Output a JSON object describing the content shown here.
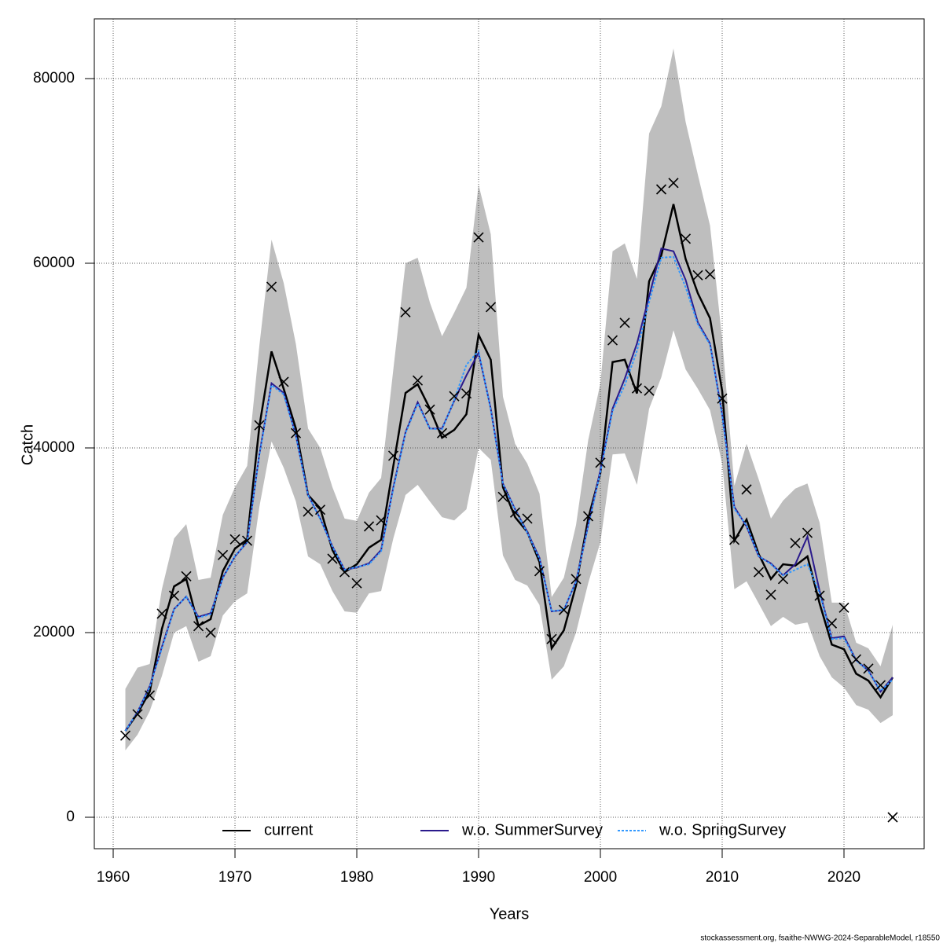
{
  "chart_data": {
    "type": "line",
    "x_label": "Years",
    "y_label": "Catch",
    "footer": "stockassessment.org, fsaithe-NWWG-2024-SeparableModel, r18550",
    "x": [
      1961,
      1962,
      1963,
      1964,
      1965,
      1966,
      1967,
      1968,
      1969,
      1970,
      1971,
      1972,
      1973,
      1974,
      1975,
      1976,
      1977,
      1978,
      1979,
      1980,
      1981,
      1982,
      1983,
      1984,
      1985,
      1986,
      1987,
      1988,
      1989,
      1990,
      1991,
      1992,
      1993,
      1994,
      1995,
      1996,
      1997,
      1998,
      1999,
      2000,
      2001,
      2002,
      2003,
      2004,
      2005,
      2006,
      2007,
      2008,
      2009,
      2010,
      2011,
      2012,
      2013,
      2014,
      2015,
      2016,
      2017,
      2018,
      2019,
      2020,
      2021,
      2022,
      2023,
      2024
    ],
    "series": [
      {
        "name": "current",
        "color": "#000000",
        "line_style": "solid",
        "values": [
          9350,
          11250,
          13600,
          20400,
          25000,
          25800,
          20750,
          21450,
          26650,
          29100,
          30100,
          42300,
          50450,
          46400,
          42100,
          34900,
          33450,
          28950,
          26550,
          27400,
          29200,
          30050,
          38050,
          45950,
          46900,
          44250,
          41100,
          41950,
          43650,
          52250,
          49550,
          35750,
          32500,
          30900,
          27650,
          18300,
          20250,
          25100,
          32350,
          37300,
          49300,
          49550,
          45900,
          58050,
          60850,
          66400,
          60450,
          56750,
          54050,
          46150,
          29950,
          32250,
          28500,
          25800,
          27400,
          27250,
          28250,
          23150,
          18700,
          18200,
          15550,
          14800,
          13000,
          15150
        ]
      },
      {
        "name": "w.o. SummerSurvey",
        "color": "#2a1a8c",
        "line_style": "solid",
        "values": [
          9350,
          11400,
          14200,
          18450,
          22550,
          23900,
          21700,
          22100,
          25950,
          28250,
          29800,
          39300,
          47000,
          45950,
          41350,
          34900,
          32350,
          29350,
          26800,
          27050,
          27500,
          28950,
          35750,
          41700,
          44950,
          42100,
          42100,
          45100,
          47850,
          50300,
          44250,
          36150,
          33350,
          30900,
          28100,
          22300,
          22450,
          25550,
          31650,
          37600,
          44250,
          47500,
          51300,
          56400,
          61600,
          61300,
          58200,
          53600,
          51300,
          43650,
          33600,
          31500,
          28250,
          27500,
          26200,
          27400,
          30400,
          24500,
          19400,
          19600,
          17000,
          15900,
          13600,
          15150
        ]
      },
      {
        "name": "w.o. SpringSurvey",
        "color": "#3399ff",
        "line_style": "dotted",
        "values": [
          9350,
          11400,
          14100,
          18300,
          22500,
          23900,
          21600,
          22000,
          25900,
          28300,
          29800,
          39200,
          46800,
          45800,
          41300,
          34900,
          32300,
          29300,
          26800,
          27100,
          27400,
          28800,
          35600,
          41600,
          44800,
          42100,
          42000,
          45200,
          49000,
          50500,
          44100,
          36100,
          33300,
          30800,
          28000,
          22300,
          22500,
          25500,
          31500,
          37400,
          44000,
          46800,
          50500,
          55800,
          60600,
          60700,
          57400,
          53400,
          51200,
          43500,
          33400,
          31600,
          28300,
          27400,
          26200,
          26800,
          27400,
          24300,
          19300,
          19400,
          17000,
          15800,
          13700,
          14900
        ]
      }
    ],
    "confidence_band": {
      "color": "#bebebe",
      "upper": [
        13900,
        16200,
        16600,
        24700,
        30200,
        31750,
        25700,
        25950,
        32750,
        35750,
        38050,
        51050,
        62550,
        57850,
        51250,
        42100,
        40000,
        35750,
        32350,
        32100,
        35150,
        36750,
        48500,
        60000,
        60600,
        55750,
        52100,
        54650,
        57350,
        68500,
        63150,
        45550,
        40450,
        38300,
        35050,
        23850,
        25950,
        31650,
        40850,
        47000,
        61300,
        62150,
        58300,
        74050,
        77000,
        83250,
        75300,
        69600,
        64100,
        51750,
        35900,
        40450,
        36600,
        32350,
        34300,
        35600,
        36150,
        31900,
        23250,
        23250,
        18900,
        18300,
        16350,
        20850
      ],
      "lower": [
        7250,
        8950,
        11500,
        15300,
        20000,
        20700,
        16850,
        17450,
        21850,
        23400,
        24250,
        33600,
        40700,
        37850,
        34200,
        28250,
        27400,
        24500,
        22300,
        22150,
        24250,
        24500,
        30200,
        34900,
        36000,
        34200,
        32500,
        32150,
        33350,
        40000,
        38700,
        28350,
        25700,
        25100,
        23000,
        14900,
        16350,
        20000,
        25350,
        29800,
        39300,
        39400,
        36000,
        44250,
        47650,
        52750,
        48500,
        46400,
        44100,
        38300,
        24700,
        25550,
        23150,
        20700,
        21700,
        20850,
        21100,
        17450,
        15150,
        14050,
        12150,
        11650,
        10200,
        11050
      ]
    },
    "observed": {
      "color": "#000000",
      "marker": "x",
      "values": [
        8850,
        11150,
        13200,
        22050,
        24000,
        26100,
        20700,
        20000,
        28400,
        30100,
        29950,
        42450,
        57450,
        47150,
        41600,
        33100,
        33300,
        28000,
        26550,
        25350,
        31500,
        32150,
        39150,
        54700,
        47300,
        44150,
        41600,
        45600,
        45900,
        62800,
        55250,
        34700,
        33000,
        32350,
        26650,
        19300,
        22450,
        25800,
        32600,
        38400,
        51650,
        53550,
        46450,
        46200,
        68000,
        68700,
        62650,
        58700,
        58800,
        45350,
        30050,
        35500,
        26550,
        24100,
        25800,
        29700,
        30800,
        24000,
        21000,
        22700,
        17100,
        16100,
        14300,
        0
      ]
    },
    "xlim": [
      1958.45,
      2026.58
    ],
    "ylim": [
      -3404,
      86468
    ],
    "xticks": [
      1960,
      1970,
      1980,
      1990,
      2000,
      2010,
      2020
    ],
    "yticks": [
      0,
      20000,
      40000,
      60000,
      80000
    ],
    "grid": true,
    "legend": "bottom"
  }
}
